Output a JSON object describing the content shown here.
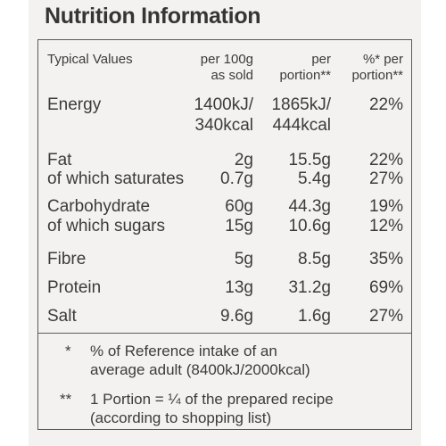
{
  "title": "Nutrition Information",
  "header": {
    "col1": "Typical Values",
    "col2_line1": "per 100g",
    "col2_line2": "as sold",
    "col3_line1": "per",
    "col3_line2": "portion**",
    "col4_line1": "%* per",
    "col4_line2": "portion**"
  },
  "rows": [
    {
      "label": "Energy",
      "per100_l1": "1400kJ/",
      "per100_l2": "340kcal",
      "portion_l1": "1865kJ/",
      "portion_l2": "444kcal",
      "pct": "22%"
    },
    {
      "label": "Fat",
      "per100": "2g",
      "portion": "15.5g",
      "pct": "22%"
    },
    {
      "label": "of which saturates",
      "per100": "0.7g",
      "portion": "5.4g",
      "pct": "27%"
    },
    {
      "label": "Carbohydrate",
      "per100": "60g",
      "portion": "44.3g",
      "pct": "19%"
    },
    {
      "label": "of which sugars",
      "per100": "15g",
      "portion": "10.6g",
      "pct": "12%"
    },
    {
      "label": "Fibre",
      "per100": "5g",
      "portion": "8.5g",
      "pct": "35%"
    },
    {
      "label": "Protein",
      "per100": "13g",
      "portion": "31.2g",
      "pct": "69%"
    },
    {
      "label": "Salt",
      "per100": "9.6g",
      "portion": "1.6g",
      "pct": "27%"
    }
  ],
  "footnotes": {
    "ri_mark": "*",
    "ri_line1": "% of Reference intake of an",
    "ri_line2": "average adult (8400kJ/2000kcal)",
    "portion_mark": "**",
    "portion_line1": "1 Portion = ¼ of the prepared recipe",
    "portion_line2": "(according to shopping list)"
  }
}
